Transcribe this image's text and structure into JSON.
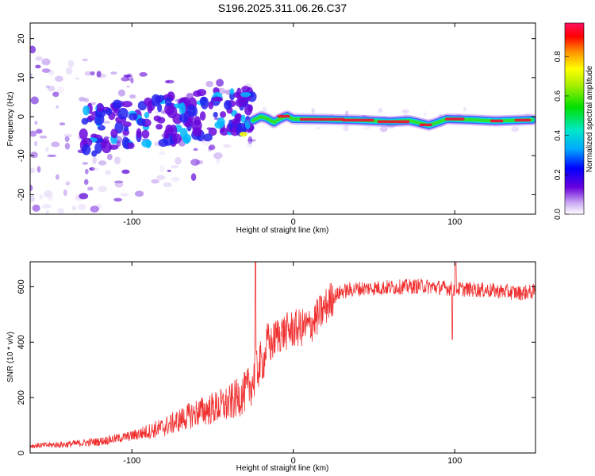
{
  "title": "S196.2025.311.06.26.C37",
  "colors": {
    "snr_line": "#f03030",
    "ridge_core": "#e0203a",
    "axis": "#000000"
  },
  "chart_data": [
    {
      "type": "heatmap",
      "title": "S196.2025.311.06.26.C37",
      "xlabel": "Height of straight line (km)",
      "ylabel": "Frequency (Hz)",
      "xlim": [
        -163,
        150
      ],
      "ylim": [
        -25,
        24
      ],
      "x_ticks": [
        -100,
        0,
        100
      ],
      "y_ticks": [
        -20,
        -10,
        0,
        10,
        20
      ],
      "colorbar": {
        "label": "Normalized spectral amplitude",
        "range": [
          0.0,
          0.97
        ],
        "ticks": [
          "0.0",
          "0.2",
          "0.4",
          "0.6",
          "0.8"
        ],
        "tick_values": [
          0.0,
          0.2,
          0.4,
          0.6,
          0.8
        ]
      },
      "ridge": {
        "x": [
          -25,
          -20,
          -16,
          -12,
          -8,
          -4,
          0,
          20,
          40,
          60,
          72,
          78,
          84,
          90,
          95,
          110,
          125,
          140,
          148
        ],
        "y": [
          -1,
          0,
          -0.5,
          -1.5,
          -0.5,
          0.2,
          -0.6,
          -0.7,
          -0.9,
          -1.3,
          -1.0,
          -1.6,
          -2.2,
          -1.4,
          -0.6,
          -0.8,
          -1.1,
          -0.9,
          -0.8
        ]
      }
    },
    {
      "type": "line",
      "xlabel": "Height of straight line (km)",
      "ylabel": "SNR (10 * v/v)",
      "xlim": [
        -163,
        150
      ],
      "ylim": [
        0,
        690
      ],
      "x_ticks": [
        -100,
        0,
        100
      ],
      "y_ticks": [
        0,
        200,
        400,
        600
      ],
      "series": [
        {
          "name": "SNR",
          "x": [
            -163,
            -140,
            -120,
            -100,
            -80,
            -60,
            -40,
            -30,
            -25,
            -22,
            -18,
            -16,
            -14,
            -10,
            0,
            10,
            20,
            25,
            30,
            40,
            60,
            80,
            100,
            120,
            140,
            150
          ],
          "y": [
            25,
            30,
            40,
            60,
            90,
            140,
            170,
            210,
            250,
            300,
            330,
            400,
            380,
            420,
            440,
            450,
            520,
            560,
            580,
            590,
            595,
            600,
            590,
            585,
            575,
            580
          ]
        }
      ]
    }
  ]
}
